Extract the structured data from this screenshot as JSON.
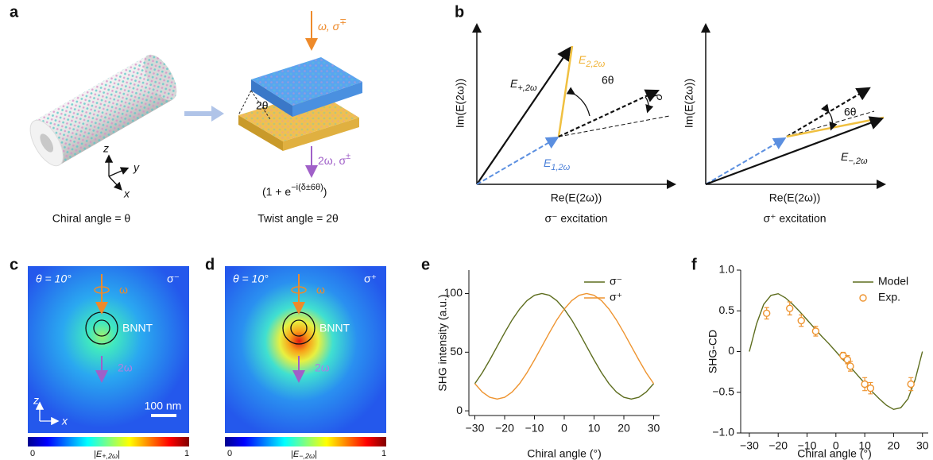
{
  "panel_labels": [
    "a",
    "b",
    "c",
    "d",
    "e",
    "f"
  ],
  "panel_a": {
    "input_beam": {
      "text": "ω, σ",
      "sup": "∓"
    },
    "twist": "2θ",
    "output_beam": {
      "text": "2ω, σ",
      "sup": "±"
    },
    "phase": {
      "text": "(1 + e",
      "sup": "−i(δ±6θ)",
      "end": ")"
    },
    "axes": [
      "z",
      "y",
      "x"
    ],
    "caption_left": "Chiral angle = θ",
    "caption_right": "Twist angle = 2θ"
  },
  "panel_b": {
    "left": {
      "y_label": "Im(E(2ω))",
      "x_label": "Re(E(2ω))",
      "e_plus": [
        "E",
        "+,2ω"
      ],
      "e2": [
        "E",
        "2,2ω"
      ],
      "angle": "6θ",
      "delta": "δ",
      "e1": [
        "E",
        "1,2ω"
      ],
      "caption": "σ⁻ excitation"
    },
    "right": {
      "y_label": "Im(E(2ω))",
      "x_label": "Re(E(2ω))",
      "angle": "6θ",
      "e_minus": [
        "E",
        "−,2ω"
      ],
      "caption": "σ⁺ excitation"
    }
  },
  "panel_c": {
    "theta": "θ = 10°",
    "omega": "ω",
    "polarization": "σ⁻",
    "label": "BNNT",
    "harmonic": "2ω",
    "axes": [
      "z",
      "x"
    ],
    "scale_bar": "100 nm",
    "colorbar_min": "0",
    "colorbar_max": "1",
    "colorbar_label": [
      "|E",
      "+,2ω",
      "|"
    ]
  },
  "panel_d": {
    "theta": "θ = 10°",
    "omega": "ω",
    "polarization": "σ⁺",
    "label": "BNNT",
    "harmonic": "2ω",
    "colorbar_min": "0",
    "colorbar_max": "1",
    "colorbar_label": [
      "|E",
      "−,2ω",
      "|"
    ]
  },
  "chart_data": [
    {
      "type": "line",
      "y_label": "SHG intensity (a.u.)",
      "x_label": "Chiral angle (°)",
      "x": [
        -30,
        -27.5,
        -25,
        -22.5,
        -20,
        -17.5,
        -15,
        -12.5,
        -10,
        -7.5,
        -5,
        -2.5,
        0,
        2.5,
        5,
        7.5,
        10,
        12.5,
        15,
        17.5,
        20,
        22.5,
        25,
        27.5,
        30
      ],
      "series": [
        {
          "name": "σ⁻",
          "color": "#5d6d1e",
          "values": [
            23.2,
            32.5,
            43.4,
            55,
            66.6,
            77.5,
            86.8,
            94.0,
            98.5,
            100,
            98.5,
            94.0,
            86.8,
            77.5,
            66.6,
            55,
            43.4,
            32.5,
            23.2,
            16.0,
            11.5,
            10,
            11.5,
            16.0,
            23.2
          ]
        },
        {
          "name": "σ⁺",
          "color": "#ee9430",
          "values": [
            23.2,
            16.0,
            11.5,
            10,
            11.5,
            16.0,
            23.2,
            32.5,
            43.4,
            55,
            66.6,
            77.5,
            86.8,
            94.0,
            98.5,
            100,
            98.5,
            94.0,
            86.8,
            77.5,
            66.6,
            55,
            43.4,
            32.5,
            23.2
          ]
        }
      ],
      "xlim": [
        -32,
        32
      ],
      "ylim": [
        -4,
        120
      ],
      "xticks": [
        {
          "value": -30,
          "label": "−30"
        },
        {
          "value": -20,
          "label": "−20"
        },
        {
          "value": -10,
          "label": "−10"
        },
        0,
        10,
        20,
        30
      ],
      "yticks": [
        0,
        50,
        100
      ],
      "legend": "upper right"
    },
    {
      "type": "line",
      "y_label": "SHG-CD",
      "x_label": "Chiral angle (°)",
      "x": [
        -30,
        -27.5,
        -25,
        -22.5,
        -20,
        -17.5,
        -15,
        -12.5,
        -10,
        -7.5,
        -5,
        -2.5,
        0,
        2.5,
        5,
        7.5,
        10,
        12.5,
        15,
        17.5,
        20,
        22.5,
        25,
        27.5,
        30
      ],
      "series": [
        {
          "name": "Model",
          "color": "#5d6d1e",
          "values": [
            0,
            0.34,
            0.58,
            0.69,
            0.71,
            0.66,
            0.58,
            0.49,
            0.39,
            0.29,
            0.19,
            0.1,
            0,
            -0.1,
            -0.19,
            -0.29,
            -0.39,
            -0.49,
            -0.58,
            -0.66,
            -0.71,
            -0.69,
            -0.58,
            -0.34,
            0
          ]
        }
      ],
      "points": {
        "name": "Exp.",
        "color": "#ee9430",
        "x": [
          -24,
          -16,
          -12,
          -7,
          2.5,
          4,
          5,
          10,
          12,
          26
        ],
        "values": [
          0.47,
          0.53,
          0.38,
          0.25,
          -0.05,
          -0.1,
          -0.18,
          -0.4,
          -0.45,
          -0.4
        ],
        "errors": [
          0.07,
          0.08,
          0.07,
          0.06,
          0.04,
          0.05,
          0.06,
          0.08,
          0.07,
          0.08
        ]
      },
      "xlim": [
        -33,
        32
      ],
      "ylim": [
        -1,
        1
      ],
      "xticks": [
        {
          "value": -30,
          "label": "−30"
        },
        {
          "value": -20,
          "label": "−20"
        },
        {
          "value": -10,
          "label": "−10"
        },
        0,
        10,
        20,
        30
      ],
      "yticks": [
        {
          "value": 1,
          "label": "1.0"
        },
        0.5,
        0,
        {
          "value": -0.5,
          "label": "−0.5"
        },
        {
          "value": -1,
          "label": "−1.0"
        }
      ],
      "legend": "upper right"
    }
  ]
}
